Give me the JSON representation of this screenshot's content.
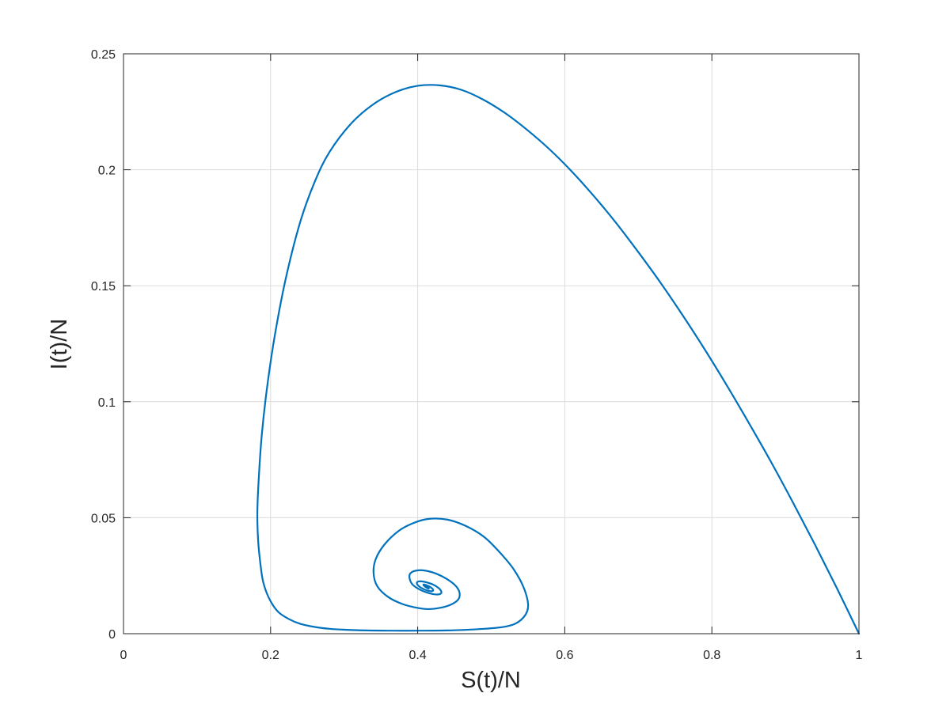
{
  "chart_data": {
    "type": "line",
    "title": "",
    "xlabel": "S(t)/N",
    "ylabel": "I(t)/N",
    "xlim": [
      0,
      1
    ],
    "ylim": [
      0,
      0.25
    ],
    "xticks": [
      0,
      0.2,
      0.4,
      0.6,
      0.8,
      1
    ],
    "xtick_labels": [
      "0",
      "0.2",
      "0.4",
      "0.6",
      "0.8",
      "1"
    ],
    "yticks": [
      0,
      0.05,
      0.1,
      0.15,
      0.2,
      0.25
    ],
    "ytick_labels": [
      "0",
      "0.05",
      "0.1",
      "0.15",
      "0.2",
      "0.25"
    ],
    "grid": true,
    "legend": "none",
    "line_color": "#0072BD",
    "series": [
      {
        "x": [
          1.0,
          0.97,
          0.94,
          0.91,
          0.88,
          0.85,
          0.82,
          0.79,
          0.76,
          0.73,
          0.7,
          0.67,
          0.64,
          0.61,
          0.58,
          0.55,
          0.52,
          0.49,
          0.46,
          0.43,
          0.4,
          0.37,
          0.34,
          0.31,
          0.28,
          0.26,
          0.24,
          0.22,
          0.205,
          0.195,
          0.188,
          0.184,
          0.182,
          0.183,
          0.186,
          0.19,
          0.198,
          0.21,
          0.225,
          0.24,
          0.26,
          0.28,
          0.3,
          0.33,
          0.36,
          0.4,
          0.44,
          0.48,
          0.52,
          0.54,
          0.55,
          0.545,
          0.53,
          0.51,
          0.49,
          0.465,
          0.44,
          0.415,
          0.395,
          0.375,
          0.355,
          0.343,
          0.34,
          0.345,
          0.36,
          0.38,
          0.4,
          0.415,
          0.43,
          0.445,
          0.455,
          0.457,
          0.452,
          0.44,
          0.425,
          0.41,
          0.398,
          0.39,
          0.389,
          0.393,
          0.403,
          0.415,
          0.425,
          0.431,
          0.432,
          0.428,
          0.42,
          0.41,
          0.403,
          0.399,
          0.4,
          0.405,
          0.412,
          0.418,
          0.421,
          0.42,
          0.416,
          0.411,
          0.408,
          0.408,
          0.41,
          0.413,
          0.415,
          0.415,
          0.414,
          0.412,
          0.411,
          0.411,
          0.412,
          0.413,
          0.413
        ],
        "y": [
          0.0,
          0.0196,
          0.0385,
          0.0567,
          0.0743,
          0.091,
          0.1072,
          0.1227,
          0.1374,
          0.1514,
          0.1645,
          0.177,
          0.1885,
          0.1991,
          0.2086,
          0.2169,
          0.2242,
          0.2301,
          0.2344,
          0.2364,
          0.2362,
          0.2335,
          0.2283,
          0.2201,
          0.2076,
          0.1948,
          0.1772,
          0.1522,
          0.1272,
          0.1056,
          0.0856,
          0.0675,
          0.0525,
          0.0405,
          0.0305,
          0.0222,
          0.0152,
          0.0095,
          0.0063,
          0.0043,
          0.0029,
          0.0021,
          0.0017,
          0.0014,
          0.0013,
          0.0013,
          0.0014,
          0.0019,
          0.0031,
          0.0058,
          0.0112,
          0.0192,
          0.028,
          0.0356,
          0.0418,
          0.0465,
          0.0492,
          0.0495,
          0.0478,
          0.0445,
          0.0385,
          0.0322,
          0.0262,
          0.0205,
          0.0158,
          0.0127,
          0.0111,
          0.0106,
          0.0111,
          0.0125,
          0.0147,
          0.0175,
          0.0205,
          0.0235,
          0.0259,
          0.0272,
          0.0272,
          0.026,
          0.0238,
          0.0212,
          0.019,
          0.0175,
          0.0169,
          0.0172,
          0.0183,
          0.0198,
          0.0213,
          0.0223,
          0.0226,
          0.0221,
          0.021,
          0.0197,
          0.0187,
          0.0183,
          0.0186,
          0.0194,
          0.0203,
          0.021,
          0.0212,
          0.0209,
          0.0203,
          0.0197,
          0.0194,
          0.0195,
          0.0199,
          0.0203,
          0.0205,
          0.0204,
          0.0201,
          0.0199,
          0.02
        ]
      }
    ]
  }
}
